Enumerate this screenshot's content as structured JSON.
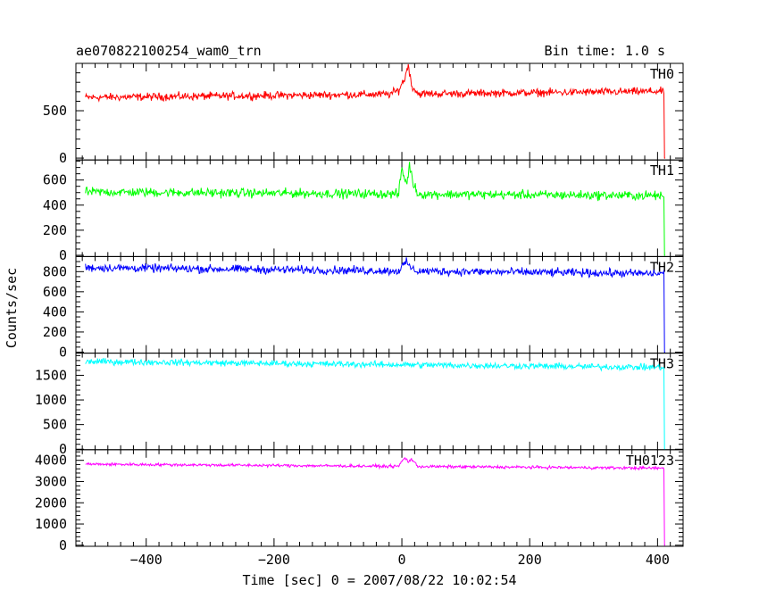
{
  "title_left": "ae070822100254_wam0_trn",
  "title_right": "Bin time: 1.0 s",
  "chart_data": {
    "type": "line",
    "xlabel": "Time [sec] 0 = 2007/08/22 10:02:54",
    "ylabel": "Counts/sec",
    "xlim": [
      -510,
      440
    ],
    "x_ticks": [
      -400,
      -200,
      0,
      200,
      400
    ],
    "series": [
      {
        "name": "TH0",
        "color": "#ff0000",
        "ylim": [
          -20,
          1000
        ],
        "y_ticks": [
          0,
          500
        ],
        "base_start": 640,
        "base_end": 705,
        "noise": 45,
        "burst": [
          [
            -20,
            0
          ],
          [
            -5,
            40
          ],
          [
            0,
            110
          ],
          [
            5,
            170
          ],
          [
            10,
            320
          ],
          [
            15,
            90
          ],
          [
            25,
            10
          ]
        ],
        "end_drop": 0
      },
      {
        "name": "TH1",
        "color": "#00ff00",
        "ylim": [
          -10,
          760
        ],
        "y_ticks": [
          0,
          200,
          400,
          600
        ],
        "base_start": 505,
        "base_end": 475,
        "noise": 40,
        "burst": [
          [
            -5,
            0
          ],
          [
            0,
            210
          ],
          [
            4,
            120
          ],
          [
            8,
            90
          ],
          [
            12,
            230
          ],
          [
            18,
            80
          ],
          [
            25,
            10
          ]
        ],
        "end_drop": 0
      },
      {
        "name": "TH2",
        "color": "#0000ff",
        "ylim": [
          -10,
          950
        ],
        "y_ticks": [
          0,
          200,
          400,
          600,
          800
        ],
        "base_start": 840,
        "base_end": 780,
        "noise": 45,
        "burst": [
          [
            -5,
            0
          ],
          [
            0,
            40
          ],
          [
            8,
            90
          ],
          [
            15,
            20
          ],
          [
            25,
            0
          ]
        ],
        "end_drop": 0
      },
      {
        "name": "TH3",
        "color": "#00ffff",
        "ylim": [
          -10,
          1950
        ],
        "y_ticks": [
          0,
          500,
          1000,
          1500
        ],
        "base_start": 1780,
        "base_end": 1660,
        "noise": 70,
        "burst": [
          [
            0,
            0
          ],
          [
            25,
            0
          ]
        ],
        "end_drop": 0
      },
      {
        "name": "TH0123",
        "color": "#ff00ff",
        "ylim": [
          -50,
          4500
        ],
        "y_ticks": [
          0,
          1000,
          2000,
          3000,
          4000
        ],
        "base_start": 3820,
        "base_end": 3630,
        "noise": 75,
        "burst": [
          [
            -5,
            0
          ],
          [
            0,
            250
          ],
          [
            5,
            400
          ],
          [
            10,
            220
          ],
          [
            15,
            350
          ],
          [
            25,
            0
          ]
        ],
        "end_drop": 0
      }
    ],
    "data_end_time": 410,
    "grid": false,
    "legend_placement": "top-right of each panel"
  }
}
